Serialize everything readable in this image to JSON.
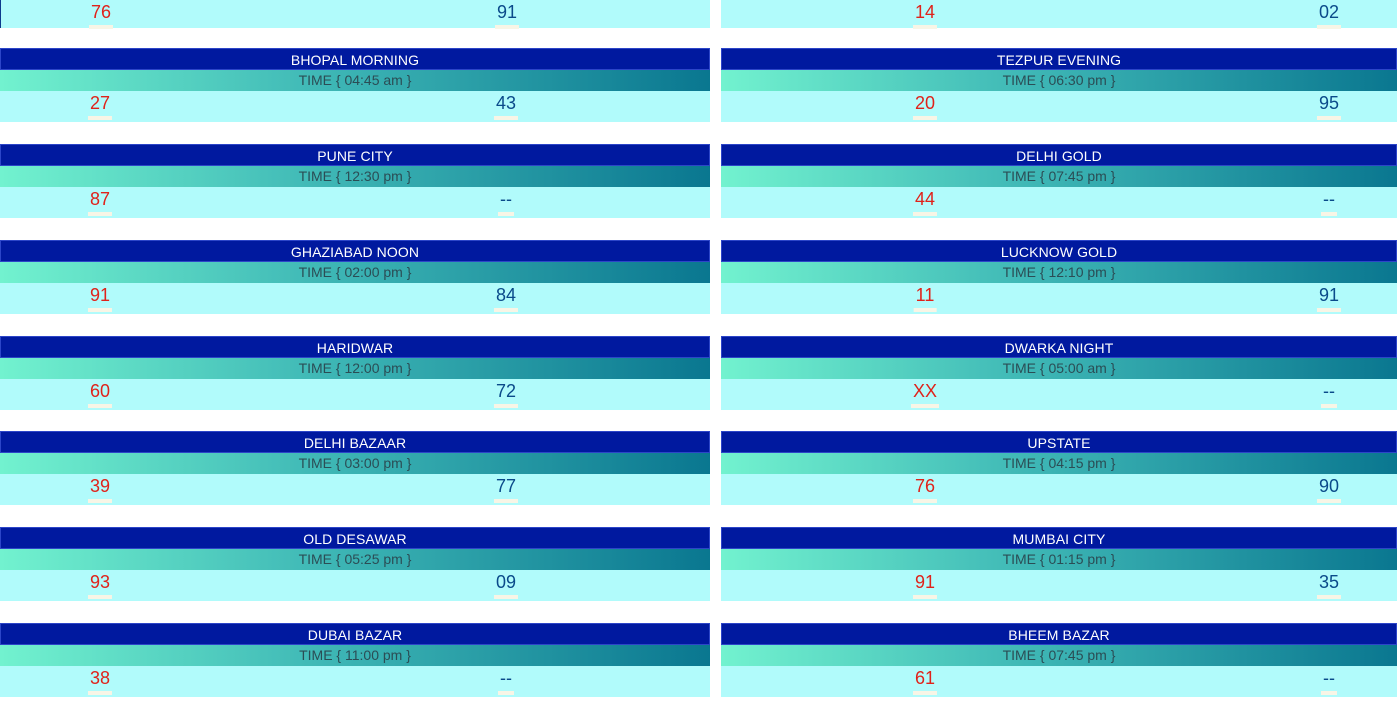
{
  "top_row": {
    "left": {
      "first": "76",
      "second": "91"
    },
    "right": {
      "first": "14",
      "second": "02"
    }
  },
  "left_column": [
    {
      "name": "BHOPAL MORNING",
      "time": "TIME { 04:45 am }",
      "first": "27",
      "second": "43"
    },
    {
      "name": "PUNE CITY",
      "time": "TIME { 12:30 pm }",
      "first": "87",
      "second": "--"
    },
    {
      "name": "GHAZIABAD NOON",
      "time": "TIME { 02:00 pm }",
      "first": "91",
      "second": "84"
    },
    {
      "name": "HARIDWAR",
      "time": "TIME { 12:00 pm }",
      "first": "60",
      "second": "72"
    },
    {
      "name": "DELHI BAZAAR",
      "time": "TIME { 03:00 pm }",
      "first": "39",
      "second": "77"
    },
    {
      "name": "OLD DESAWAR",
      "time": "TIME { 05:25 pm }",
      "first": "93",
      "second": "09"
    },
    {
      "name": "DUBAI BAZAR",
      "time": "TIME { 11:00 pm }",
      "first": "38",
      "second": "--"
    }
  ],
  "right_column": [
    {
      "name": "TEZPUR EVENING",
      "time": "TIME { 06:30 pm }",
      "first": "20",
      "second": "95"
    },
    {
      "name": "DELHI GOLD",
      "time": "TIME { 07:45 pm }",
      "first": "44",
      "second": "--"
    },
    {
      "name": "LUCKNOW GOLD",
      "time": "TIME { 12:10 pm }",
      "first": "11",
      "second": "91"
    },
    {
      "name": "DWARKA NIGHT",
      "time": "TIME { 05:00 am }",
      "first": "XX",
      "second": "--"
    },
    {
      "name": "UPSTATE",
      "time": "TIME { 04:15 pm }",
      "first": "76",
      "second": "90"
    },
    {
      "name": "MUMBAI CITY",
      "time": "TIME { 01:15 pm }",
      "first": "91",
      "second": "35"
    },
    {
      "name": "BHEEM BAZAR",
      "time": "TIME { 07:45 pm }",
      "first": "61",
      "second": "--"
    }
  ],
  "colors": {
    "title_bg": "#00199f",
    "result_bg": "#b1fbfb",
    "first_number": "#e0221a",
    "second_number": "#0a4a8a"
  }
}
